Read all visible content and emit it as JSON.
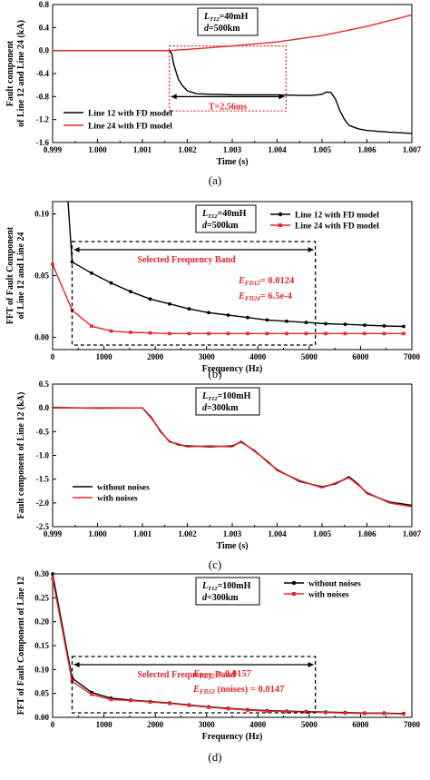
{
  "panels": [
    {
      "id": "a",
      "caption": "(a)",
      "xlabel": "Time (s)",
      "ylabel_lines": [
        "Fault component",
        "of Line 12 and Line 24 (kA)"
      ],
      "info": {
        "l_prefix": "L",
        "l_sub": "T12",
        "l_value": "=40mH",
        "d_prefix": "d",
        "d_value": "=500km"
      },
      "legend": [
        "Line 12 with FD model",
        "Line 24 with FD model"
      ],
      "annotation": "T=2.56ms"
    },
    {
      "id": "b",
      "caption": "(b)",
      "xlabel": "Frequency (Hz)",
      "ylabel_lines": [
        "FFT of Fault Component",
        "of Line 12 and Line 24"
      ],
      "info": {
        "l_prefix": "L",
        "l_sub": "T12",
        "l_value": "=40mH",
        "d_prefix": "d",
        "d_value": "=500km"
      },
      "legend": [
        "Line 12 with FD model",
        "Line 24 with FD model"
      ],
      "band_label": "Selected Frequency Band",
      "metrics": [
        {
          "prefix": "E",
          "sub": "FD12",
          "value": "= 0.0124"
        },
        {
          "prefix": "E",
          "sub": "FD24",
          "value": "= 6.5e-4"
        }
      ]
    },
    {
      "id": "c",
      "caption": "(c)",
      "xlabel": "Time (s)",
      "ylabel_lines": [
        "Fault component of Line 12 (kA)"
      ],
      "info": {
        "l_prefix": "L",
        "l_sub": "T12",
        "l_value": "=100mH",
        "d_prefix": "d",
        "d_value": "=300km"
      },
      "legend": [
        "without noises",
        "with noises"
      ]
    },
    {
      "id": "d",
      "caption": "(d)",
      "xlabel": "Frequency (Hz)",
      "ylabel_lines": [
        "FFT of Fault Component of Line 12"
      ],
      "info": {
        "l_prefix": "L",
        "l_sub": "T12",
        "l_value": "=100mH",
        "d_prefix": "d",
        "d_value": "=300km"
      },
      "legend": [
        "without noises",
        "with noises"
      ],
      "band_label": "Selected Frequency Band",
      "metrics": [
        {
          "prefix": "E",
          "sub": "FD12",
          "value": " = 0.0157"
        },
        {
          "prefix": "E",
          "sub": "FD12",
          "value": " (noises) = 0.0147"
        }
      ]
    }
  ],
  "colors": {
    "black_series": "#000000",
    "red_series": "#e8262a",
    "box": "#000000"
  },
  "chart_data": [
    {
      "type": "line",
      "xlim": [
        0.999,
        1.007
      ],
      "ylim": [
        -1.6,
        0.8
      ],
      "x_ticks": [
        "0.999",
        "1.000",
        "1.001",
        "1.002",
        "1.003",
        "1.004",
        "1.005",
        "1.006",
        "1.007"
      ],
      "y_ticks": [
        "-1.6",
        "-1.2",
        "-0.8",
        "-0.4",
        "0.0",
        "0.4",
        "0.8"
      ],
      "series": [
        {
          "name": "Line 12 with FD model",
          "color": "#000000",
          "x": [
            0.999,
            1.0,
            1.001,
            1.0016,
            1.00165,
            1.0017,
            1.0018,
            1.0019,
            1.002,
            1.0022,
            1.0025,
            1.003,
            1.0035,
            1.004,
            1.0045,
            1.0048,
            1.005,
            1.0051,
            1.0052,
            1.0053,
            1.0054,
            1.0055,
            1.0056,
            1.0058,
            1.006,
            1.0065,
            1.007
          ],
          "y": [
            0.0,
            0.0,
            0.0,
            0.0,
            -0.05,
            -0.25,
            -0.5,
            -0.62,
            -0.7,
            -0.75,
            -0.76,
            -0.77,
            -0.77,
            -0.77,
            -0.78,
            -0.78,
            -0.76,
            -0.72,
            -0.73,
            -0.85,
            -1.05,
            -1.2,
            -1.3,
            -1.36,
            -1.39,
            -1.42,
            -1.44
          ]
        },
        {
          "name": "Line 24 with FD model",
          "color": "#e8262a",
          "x": [
            0.999,
            1.0,
            1.001,
            1.0016,
            1.002,
            1.003,
            1.004,
            1.005,
            1.006,
            1.007
          ],
          "y": [
            0.0,
            0.0,
            0.0,
            0.0,
            0.02,
            0.08,
            0.15,
            0.26,
            0.42,
            0.62
          ]
        }
      ],
      "highlight_window": {
        "x": [
          1.0016,
          1.0042
        ],
        "y": [
          -1.05,
          0.08
        ]
      }
    },
    {
      "type": "line",
      "xlim": [
        0,
        7000
      ],
      "ylim": [
        -0.01,
        0.11
      ],
      "x_ticks": [
        "0",
        "1000",
        "2000",
        "3000",
        "4000",
        "5000",
        "6000",
        "7000"
      ],
      "y_ticks": [
        "0.00",
        "0.05",
        "0.10"
      ],
      "series": [
        {
          "name": "Line 12 with FD model",
          "color": "#000000",
          "x": [
            380,
            760,
            1140,
            1520,
            1900,
            2280,
            2660,
            3040,
            3420,
            3800,
            4180,
            4560,
            4940,
            5320,
            5700,
            6080,
            6460,
            6840
          ],
          "y": [
            0.061,
            0.052,
            0.044,
            0.037,
            0.031,
            0.027,
            0.023,
            0.02,
            0.018,
            0.016,
            0.014,
            0.013,
            0.012,
            0.011,
            0.0105,
            0.0098,
            0.0092,
            0.0088
          ]
        },
        {
          "name": "Line 24 with FD model",
          "color": "#e8262a",
          "x": [
            0,
            380,
            760,
            1140,
            1520,
            1900,
            2280,
            2660,
            3040,
            3420,
            3800,
            4180,
            4560,
            4940,
            5320,
            5700,
            6080,
            6460,
            6840
          ],
          "y": [
            0.059,
            0.022,
            0.009,
            0.005,
            0.004,
            0.0035,
            0.003,
            0.003,
            0.003,
            0.003,
            0.003,
            0.003,
            0.003,
            0.003,
            0.003,
            0.003,
            0.003,
            0.003,
            0.003
          ]
        }
      ],
      "band": {
        "x": [
          380,
          5120
        ]
      }
    },
    {
      "type": "line",
      "xlim": [
        0.999,
        1.007
      ],
      "ylim": [
        -2.5,
        0.5
      ],
      "x_ticks": [
        "0.999",
        "1.000",
        "1.001",
        "1.002",
        "1.003",
        "1.004",
        "1.005",
        "1.006",
        "1.007"
      ],
      "y_ticks": [
        "-2.5",
        "-2.0",
        "-1.5",
        "-1.0",
        "-0.5",
        "0.0",
        "0.5"
      ],
      "series": [
        {
          "name": "without noises",
          "color": "#000000",
          "x": [
            0.999,
            1.0,
            1.001,
            1.0012,
            1.0014,
            1.0016,
            1.0018,
            1.002,
            1.0025,
            1.003,
            1.0032,
            1.0035,
            1.0038,
            1.004,
            1.0045,
            1.005,
            1.0053,
            1.0056,
            1.0058,
            1.006,
            1.0065,
            1.007
          ],
          "y": [
            0.0,
            0.0,
            0.0,
            -0.2,
            -0.5,
            -0.7,
            -0.78,
            -0.8,
            -0.82,
            -0.8,
            -0.72,
            -0.9,
            -1.15,
            -1.3,
            -1.55,
            -1.66,
            -1.6,
            -1.45,
            -1.6,
            -1.8,
            -1.98,
            -2.05
          ]
        },
        {
          "name": "with noises",
          "color": "#e8262a",
          "x": [
            0.999,
            1.0,
            1.001,
            1.0012,
            1.0014,
            1.0016,
            1.0018,
            1.002,
            1.0025,
            1.003,
            1.0032,
            1.0035,
            1.0038,
            1.004,
            1.0045,
            1.005,
            1.0053,
            1.0056,
            1.0058,
            1.006,
            1.0065,
            1.007
          ],
          "y": [
            0.01,
            -0.01,
            0.0,
            -0.22,
            -0.48,
            -0.72,
            -0.76,
            -0.82,
            -0.8,
            -0.82,
            -0.7,
            -0.92,
            -1.13,
            -1.32,
            -1.53,
            -1.68,
            -1.58,
            -1.47,
            -1.62,
            -1.78,
            -2.0,
            -2.08
          ]
        }
      ]
    },
    {
      "type": "line",
      "xlim": [
        0,
        7000
      ],
      "ylim": [
        0.0,
        0.3
      ],
      "x_ticks": [
        "0",
        "1000",
        "2000",
        "3000",
        "4000",
        "5000",
        "6000",
        "7000"
      ],
      "y_ticks": [
        "0.00",
        "0.05",
        "0.10",
        "0.15",
        "0.20",
        "0.25",
        "0.30"
      ],
      "series": [
        {
          "name": "without noises",
          "color": "#000000",
          "x": [
            0,
            380,
            760,
            1140,
            1520,
            1900,
            2280,
            2660,
            3040,
            3420,
            3800,
            4180,
            4560,
            4940,
            5320,
            5700,
            6080,
            6460,
            6840
          ],
          "y": [
            0.3,
            0.082,
            0.052,
            0.04,
            0.036,
            0.033,
            0.03,
            0.026,
            0.022,
            0.019,
            0.016,
            0.014,
            0.013,
            0.012,
            0.011,
            0.01,
            0.009,
            0.009,
            0.008
          ]
        },
        {
          "name": "with noises",
          "color": "#e8262a",
          "x": [
            0,
            380,
            760,
            1140,
            1520,
            1900,
            2280,
            2660,
            3040,
            3420,
            3800,
            4180,
            4560,
            4940,
            5320,
            5700,
            6080,
            6460,
            6840
          ],
          "y": [
            0.29,
            0.075,
            0.048,
            0.037,
            0.035,
            0.032,
            0.029,
            0.025,
            0.021,
            0.018,
            0.015,
            0.013,
            0.012,
            0.011,
            0.01,
            0.009,
            0.008,
            0.008,
            0.007
          ]
        }
      ],
      "band": {
        "x": [
          380,
          5120
        ]
      }
    }
  ]
}
